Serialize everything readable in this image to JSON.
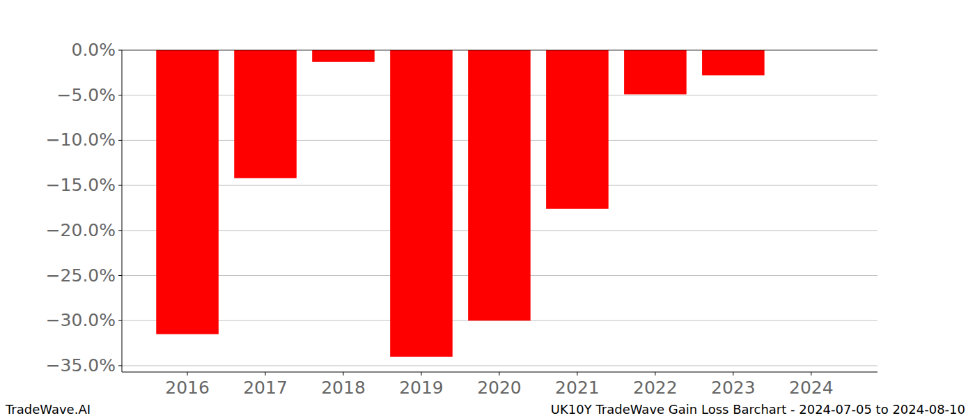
{
  "chart_data": {
    "type": "bar",
    "title": "UK10Y TradeWave Gain Loss Barchart - 2024-07-05 to 2024-08-10",
    "annotations": [
      "TradeWave.AI"
    ],
    "categories": [
      "2016",
      "2017",
      "2018",
      "2019",
      "2020",
      "2021",
      "2022",
      "2023",
      "2024"
    ],
    "values": [
      -31.5,
      -14.2,
      -1.3,
      -34.0,
      -30.0,
      -17.6,
      -4.9,
      -2.8,
      0
    ],
    "color": "#ff0000",
    "ylim": [
      -35.7,
      0
    ],
    "yticks": [
      {
        "value": 0,
        "label": "0.0%"
      },
      {
        "value": -5,
        "label": "−5.0%"
      },
      {
        "value": -10,
        "label": "−10.0%"
      },
      {
        "value": -15,
        "label": "−15.0%"
      },
      {
        "value": -20,
        "label": "−20.0%"
      },
      {
        "value": -25,
        "label": "−25.0%"
      },
      {
        "value": -30,
        "label": "−30.0%"
      },
      {
        "value": -35,
        "label": "−35.0%"
      }
    ],
    "grid": true
  }
}
